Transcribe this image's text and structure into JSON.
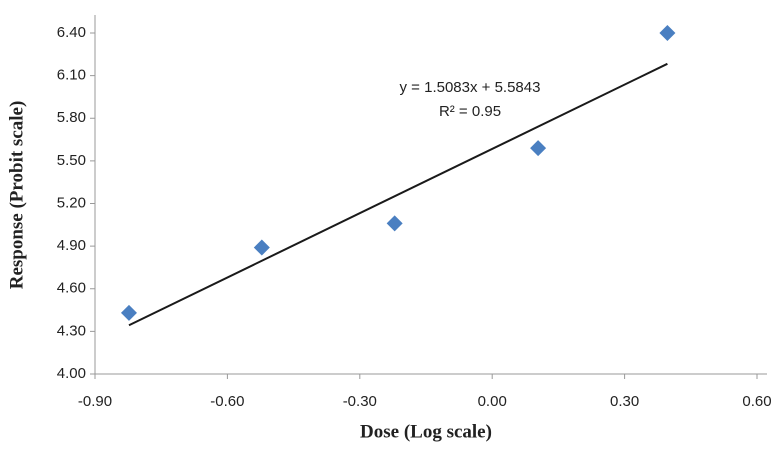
{
  "chart_data": {
    "type": "scatter",
    "x_label": "Dose (Log scale)",
    "y_label": "Response (Probit scale)",
    "series": [
      {
        "color": "#4a7fc1",
        "x": [
          -0.823,
          -0.522,
          -0.221,
          0.104,
          0.397
        ],
        "values": [
          4.43,
          4.89,
          5.06,
          5.59,
          6.4
        ]
      }
    ],
    "trendline": {
      "slope": 1.5083,
      "intercept": 5.5843,
      "equation": "y = 1.5083x + 5.5843",
      "r2_label": "R² = 0.95",
      "color": "#1a1a1a"
    },
    "xlim": [
      -0.9,
      0.6
    ],
    "xticks": [
      {
        "value": -0.9,
        "label": "-0.90"
      },
      {
        "value": -0.6,
        "label": "-0.60"
      },
      {
        "value": -0.3,
        "label": "-0.30"
      },
      {
        "value": 0,
        "label": "0.00"
      },
      {
        "value": 0.3,
        "label": "0.30"
      },
      {
        "value": 0.6,
        "label": "0.60"
      }
    ],
    "ylim": [
      4.0,
      6.4
    ],
    "yticks": [
      {
        "value": 4.0,
        "label": "4.00"
      },
      {
        "value": 4.3,
        "label": "4.30"
      },
      {
        "value": 4.6,
        "label": "4.60"
      },
      {
        "value": 4.9,
        "label": "4.90"
      },
      {
        "value": 5.2,
        "label": "5.20"
      },
      {
        "value": 5.5,
        "label": "5.50"
      },
      {
        "value": 5.8,
        "label": "5.80"
      },
      {
        "value": 6.1,
        "label": "6.10"
      },
      {
        "value": 6.4,
        "label": "6.40"
      }
    ],
    "grid": false
  }
}
